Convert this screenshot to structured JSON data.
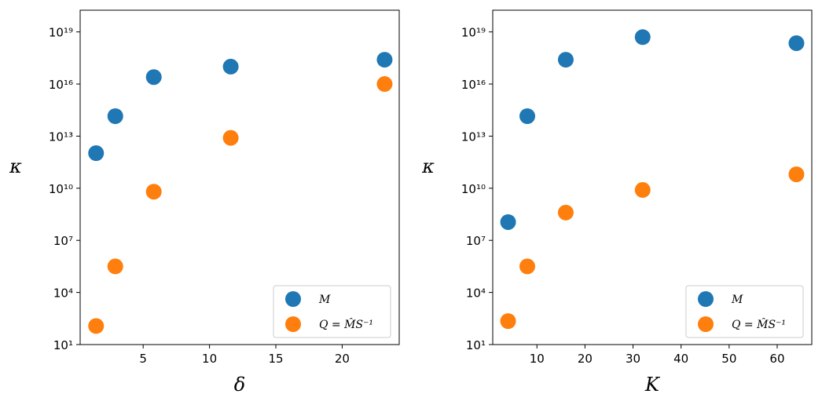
{
  "chart_data": [
    {
      "type": "scatter",
      "xlabel": "δ",
      "ylabel": "κ",
      "xlim": [
        0.25,
        24.3
      ],
      "ylim_exponent": [
        1,
        20.25
      ],
      "yscale": "log",
      "x_ticks": [
        5,
        10,
        15,
        20
      ],
      "y_tick_exponents": [
        1,
        4,
        7,
        10,
        13,
        16,
        19
      ],
      "legend_placement": "lower right",
      "series": [
        {
          "name": "M",
          "color": "#1f77b4",
          "x": [
            1.45,
            2.9,
            5.8,
            11.6,
            23.2
          ],
          "y_exponent": [
            12.02,
            14.15,
            16.4,
            17.0,
            17.4
          ]
        },
        {
          "name": "Q = M̂S⁻¹",
          "color": "#ff7f0e",
          "x": [
            1.45,
            2.9,
            5.8,
            11.6,
            23.2
          ],
          "y_exponent": [
            2.07,
            5.5,
            9.8,
            12.9,
            16.0
          ]
        }
      ]
    },
    {
      "type": "scatter",
      "xlabel": "K",
      "ylabel": "κ",
      "xlim": [
        0.8,
        67.2
      ],
      "ylim_exponent": [
        1,
        20.25
      ],
      "yscale": "log",
      "x_ticks": [
        10,
        20,
        30,
        40,
        50,
        60
      ],
      "y_tick_exponents": [
        1,
        4,
        7,
        10,
        13,
        16,
        19
      ],
      "legend_placement": "lower right",
      "series": [
        {
          "name": "M",
          "color": "#1f77b4",
          "x": [
            4,
            8,
            16,
            32,
            64
          ],
          "y_exponent": [
            8.05,
            14.15,
            17.4,
            18.7,
            18.35
          ]
        },
        {
          "name": "Q = M̂S⁻¹",
          "color": "#ff7f0e",
          "x": [
            4,
            8,
            16,
            32,
            64
          ],
          "y_exponent": [
            2.35,
            5.5,
            8.6,
            9.9,
            10.8
          ]
        }
      ]
    }
  ]
}
